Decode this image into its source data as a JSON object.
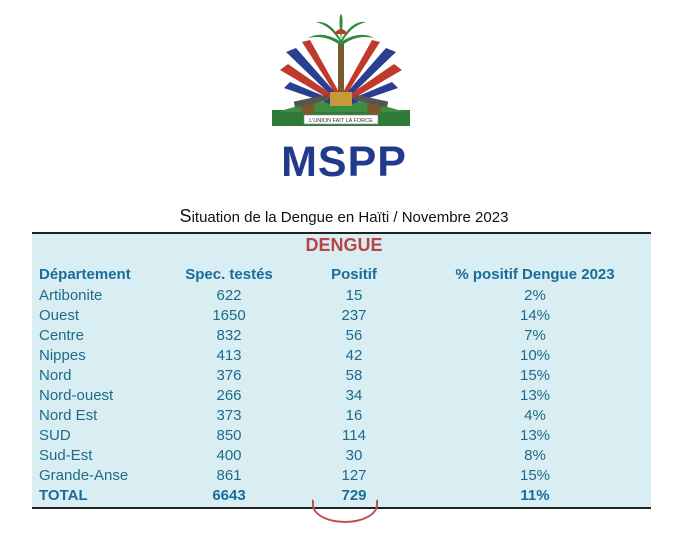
{
  "emblem": {
    "motto": "L'UNION FAIT LA FORCE",
    "icon": "haiti-coat-of-arms"
  },
  "logo_text": "MSPP",
  "title_first_letter": "S",
  "title_rest": "ituation de la Dengue en Haïti / Novembre 2023",
  "table_title": "DENGUE",
  "headers": {
    "department": "Département",
    "tested": "Spec. testés",
    "positive": "Positif",
    "percent": "% positif Dengue  2023"
  },
  "rows": [
    {
      "department": "Artibonite",
      "tested": "622",
      "positive": "15",
      "percent": "2%"
    },
    {
      "department": "Ouest",
      "tested": "1650",
      "positive": "237",
      "percent": "14%"
    },
    {
      "department": "Centre",
      "tested": "832",
      "positive": "56",
      "percent": "7%"
    },
    {
      "department": "Nippes",
      "tested": "413",
      "positive": "42",
      "percent": "10%"
    },
    {
      "department": "Nord",
      "tested": "376",
      "positive": "58",
      "percent": "15%"
    },
    {
      "department": "Nord-ouest",
      "tested": "266",
      "positive": "34",
      "percent": "13%"
    },
    {
      "department": "Nord Est",
      "tested": "373",
      "positive": "16",
      "percent": "4%"
    },
    {
      "department": "SUD",
      "tested": "850",
      "positive": "114",
      "percent": "13%"
    },
    {
      "department": "Sud-Est",
      "tested": "400",
      "positive": "30",
      "percent": "8%"
    },
    {
      "department": "Grande-Anse",
      "tested": "861",
      "positive": "127",
      "percent": "15%"
    }
  ],
  "total": {
    "department": "TOTAL",
    "tested": "6643",
    "positive": "729",
    "percent": "11%"
  },
  "colors": {
    "logo": "#223a8c",
    "table_bg": "#d9eef3",
    "table_text": "#1f6a8a",
    "dengue_title": "#b94545"
  }
}
